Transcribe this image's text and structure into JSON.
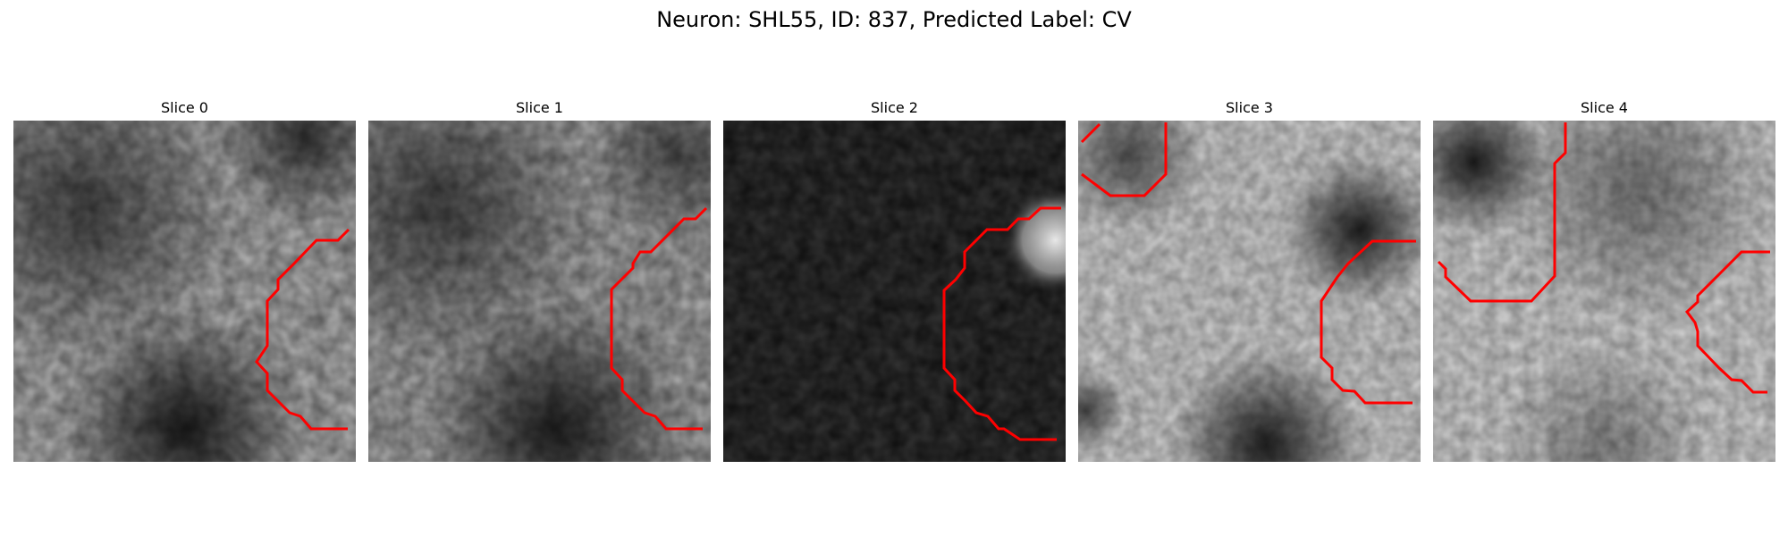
{
  "title": "Neuron: SHL55, ID: 837, Predicted Label: CV",
  "contour_color": "#ff0000",
  "panels": [
    {
      "title": "Slice 0"
    },
    {
      "title": "Slice 1"
    },
    {
      "title": "Slice 2"
    },
    {
      "title": "Slice 3"
    },
    {
      "title": "Slice 4"
    }
  ]
}
